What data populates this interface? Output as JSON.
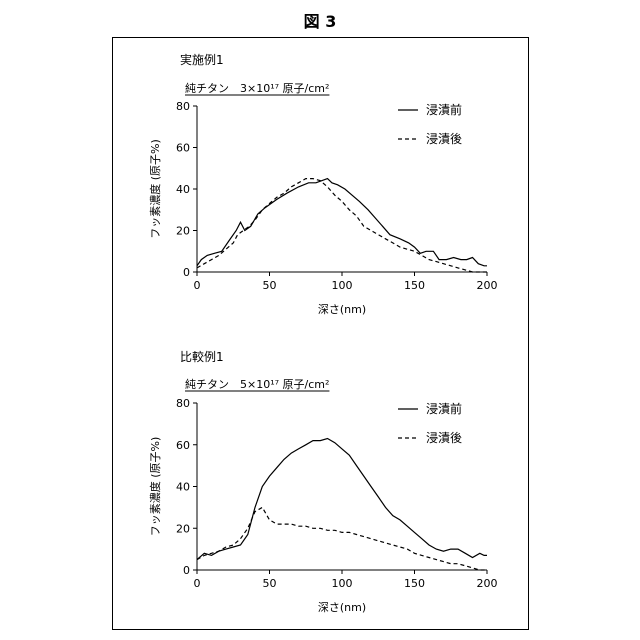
{
  "figure_title": "図 3",
  "chart_data": [
    {
      "type": "line",
      "example_label": "実施例1",
      "subtitle": "純チタン　3×10¹⁷ 原子/cm²",
      "xlabel": "深さ(nm)",
      "ylabel": "フッ素濃度 (原子%)",
      "xlim": [
        0,
        200
      ],
      "ylim": [
        0,
        80
      ],
      "xticks": [
        "0",
        "50",
        "100",
        "150",
        "200"
      ],
      "yticks": [
        "0",
        "20",
        "40",
        "60",
        "80"
      ],
      "grid": false,
      "legend_position": "top-right",
      "series": [
        {
          "name": "浸漬前",
          "dash": "solid",
          "x": [
            0,
            3,
            7,
            12,
            17,
            22,
            27,
            30,
            33,
            37,
            42,
            47,
            55,
            62,
            70,
            77,
            82,
            86,
            90,
            93,
            97,
            102,
            107,
            112,
            118,
            123,
            128,
            133,
            140,
            146,
            150,
            154,
            158,
            163,
            167,
            172,
            177,
            182,
            186,
            190,
            194,
            198,
            200
          ],
          "y": [
            3,
            6,
            8,
            9,
            10,
            15,
            20,
            24,
            20,
            22,
            28,
            31,
            35,
            38,
            41,
            43,
            43,
            44,
            45,
            43,
            42,
            40,
            37,
            34,
            30,
            26,
            22,
            18,
            16,
            14,
            12,
            9,
            10,
            10,
            6,
            6,
            7,
            6,
            6,
            7,
            4,
            3,
            3
          ]
        },
        {
          "name": "浸漬後",
          "dash": "dashed",
          "x": [
            0,
            5,
            10,
            15,
            20,
            25,
            28,
            32,
            36,
            40,
            45,
            50,
            55,
            60,
            65,
            70,
            75,
            80,
            85,
            90,
            95,
            100,
            105,
            110,
            115,
            120,
            125,
            130,
            135,
            140,
            145,
            150,
            155,
            160,
            165,
            170,
            175,
            180,
            185,
            190,
            195,
            200
          ],
          "y": [
            2,
            4,
            6,
            8,
            11,
            14,
            18,
            20,
            22,
            25,
            30,
            33,
            36,
            38,
            41,
            43,
            45,
            45,
            44,
            41,
            37,
            34,
            30,
            27,
            22,
            20,
            18,
            16,
            14,
            12,
            11,
            10,
            8,
            6,
            5,
            4,
            3,
            2,
            1,
            0,
            0,
            0
          ]
        }
      ]
    },
    {
      "type": "line",
      "example_label": "比較例1",
      "subtitle": "純チタン　5×10¹⁷ 原子/cm²",
      "xlabel": "深さ(nm)",
      "ylabel": "フッ素濃度 (原子%)",
      "xlim": [
        0,
        200
      ],
      "ylim": [
        0,
        80
      ],
      "xticks": [
        "0",
        "50",
        "100",
        "150",
        "200"
      ],
      "yticks": [
        "0",
        "20",
        "40",
        "60",
        "80"
      ],
      "grid": false,
      "legend_position": "top-right",
      "series": [
        {
          "name": "浸漬前",
          "dash": "solid",
          "x": [
            0,
            5,
            10,
            15,
            20,
            25,
            30,
            35,
            40,
            45,
            50,
            55,
            60,
            65,
            70,
            75,
            80,
            85,
            90,
            95,
            100,
            105,
            110,
            115,
            120,
            125,
            130,
            135,
            140,
            145,
            150,
            155,
            160,
            165,
            170,
            175,
            180,
            185,
            190,
            195,
            198,
            200
          ],
          "y": [
            5,
            8,
            7,
            9,
            10,
            11,
            12,
            17,
            30,
            40,
            45,
            49,
            53,
            56,
            58,
            60,
            62,
            62,
            63,
            61,
            58,
            55,
            50,
            45,
            40,
            35,
            30,
            26,
            24,
            21,
            18,
            15,
            12,
            10,
            9,
            10,
            10,
            8,
            6,
            8,
            7,
            7
          ]
        },
        {
          "name": "浸漬後",
          "dash": "dashed",
          "x": [
            0,
            5,
            10,
            15,
            20,
            25,
            30,
            35,
            40,
            45,
            50,
            55,
            60,
            65,
            70,
            75,
            80,
            85,
            90,
            95,
            100,
            105,
            110,
            115,
            120,
            125,
            130,
            135,
            140,
            145,
            150,
            155,
            160,
            165,
            170,
            175,
            180,
            185,
            190,
            195,
            200
          ],
          "y": [
            5,
            7,
            8,
            9,
            11,
            12,
            15,
            20,
            28,
            30,
            24,
            22,
            22,
            22,
            21,
            21,
            20,
            20,
            19,
            19,
            18,
            18,
            17,
            16,
            15,
            14,
            13,
            12,
            11,
            10,
            8,
            7,
            6,
            5,
            4,
            3,
            3,
            2,
            1,
            0,
            0
          ]
        }
      ]
    }
  ]
}
